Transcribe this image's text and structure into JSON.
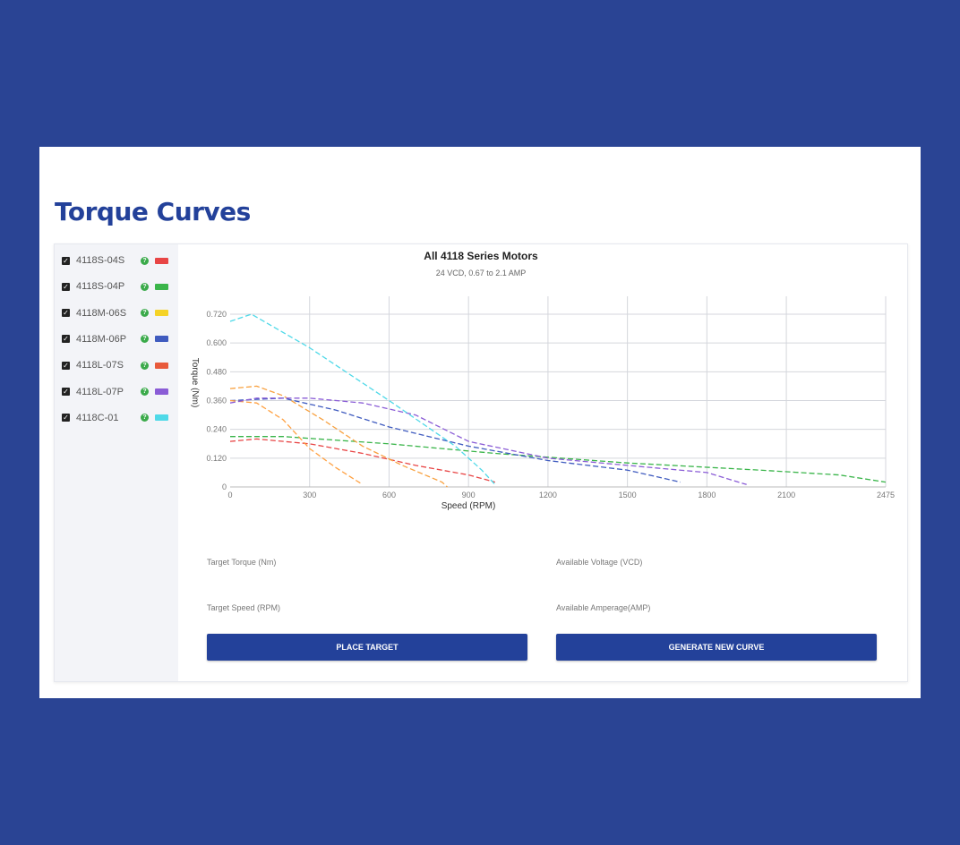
{
  "page": {
    "title": "Torque Curves"
  },
  "motors": [
    {
      "label": "4118S-04S",
      "color": "#e84545",
      "checked": true,
      "icon": "help-icon"
    },
    {
      "label": "4118S-04P",
      "color": "#3ab54a",
      "checked": true,
      "icon": "help-icon"
    },
    {
      "label": "4118M-06S",
      "color": "#f5d327",
      "checked": true,
      "icon": "help-icon"
    },
    {
      "label": "4118M-06P",
      "color": "#3f5bbf",
      "checked": true,
      "icon": "help-icon"
    },
    {
      "label": "4118L-07S",
      "color": "#e85a3c",
      "checked": true,
      "icon": "help-icon"
    },
    {
      "label": "4118L-07P",
      "color": "#8a5cd6",
      "checked": true,
      "icon": "help-icon"
    },
    {
      "label": "4118C-01",
      "color": "#4fd9e8",
      "checked": true,
      "icon": "help-icon"
    }
  ],
  "chart_data": {
    "type": "line",
    "title": "All 4118 Series Motors",
    "subtitle": "24 VCD, 0.67 to 2.1 AMP",
    "xlabel": "Speed (RPM)",
    "ylabel": "Torque (Nm)",
    "xlim": [
      0,
      2475
    ],
    "ylim": [
      0,
      0.72
    ],
    "x_ticks": [
      0,
      300,
      600,
      900,
      1200,
      1500,
      1800,
      2100,
      2475
    ],
    "x_tick_labels": [
      "0",
      "300",
      "600",
      "900",
      "1200",
      "1500",
      "1800",
      "2100",
      "2475"
    ],
    "y_ticks": [
      0,
      0.12,
      0.24,
      0.36,
      0.48,
      0.6,
      0.72
    ],
    "y_tick_labels": [
      "0",
      "0.120",
      "0.240",
      "0.360",
      "0.480",
      "0.600",
      "0.720"
    ],
    "grid": true,
    "series": [
      {
        "name": "4118S-04S",
        "color": "#e84545",
        "x": [
          0,
          100,
          300,
          500,
          700,
          900,
          1000
        ],
        "y": [
          0.19,
          0.2,
          0.18,
          0.14,
          0.09,
          0.05,
          0.02
        ]
      },
      {
        "name": "4118S-04P",
        "color": "#3ab54a",
        "x": [
          0,
          200,
          600,
          1000,
          1500,
          2000,
          2300,
          2475
        ],
        "y": [
          0.21,
          0.21,
          0.18,
          0.14,
          0.1,
          0.07,
          0.05,
          0.02
        ]
      },
      {
        "name": "4118M-06S",
        "color": "#f8a13f",
        "x": [
          0,
          100,
          200,
          350,
          500,
          650,
          800,
          820
        ],
        "y": [
          0.41,
          0.42,
          0.38,
          0.28,
          0.17,
          0.09,
          0.02,
          0.0
        ]
      },
      {
        "name": "4118M-06P",
        "color": "#3f5bbf",
        "x": [
          0,
          200,
          400,
          600,
          900,
          1200,
          1500,
          1700
        ],
        "y": [
          0.36,
          0.37,
          0.32,
          0.25,
          0.17,
          0.11,
          0.07,
          0.02
        ]
      },
      {
        "name": "4118L-07S",
        "color": "#ffa040",
        "x": [
          0,
          100,
          200,
          300,
          400,
          500
        ],
        "y": [
          0.36,
          0.35,
          0.28,
          0.16,
          0.08,
          0.01
        ]
      },
      {
        "name": "4118L-07P",
        "color": "#8a5cd6",
        "x": [
          0,
          100,
          300,
          500,
          700,
          900,
          1200,
          1500,
          1800,
          1950
        ],
        "y": [
          0.35,
          0.37,
          0.37,
          0.35,
          0.3,
          0.19,
          0.12,
          0.09,
          0.06,
          0.01
        ]
      },
      {
        "name": "4118C-01",
        "color": "#4fd9e8",
        "x": [
          0,
          80,
          300,
          600,
          850,
          950,
          1000
        ],
        "y": [
          0.69,
          0.72,
          0.58,
          0.36,
          0.17,
          0.07,
          0.01
        ]
      }
    ]
  },
  "form": {
    "target_torque_label": "Target Torque (Nm)",
    "target_speed_label": "Target Speed (RPM)",
    "available_voltage_label": "Available Voltage (VCD)",
    "available_amperage_label": "Available Amperage(AMP)",
    "place_target_button": "PLACE TARGET",
    "generate_curve_button": "GENERATE NEW CURVE"
  }
}
